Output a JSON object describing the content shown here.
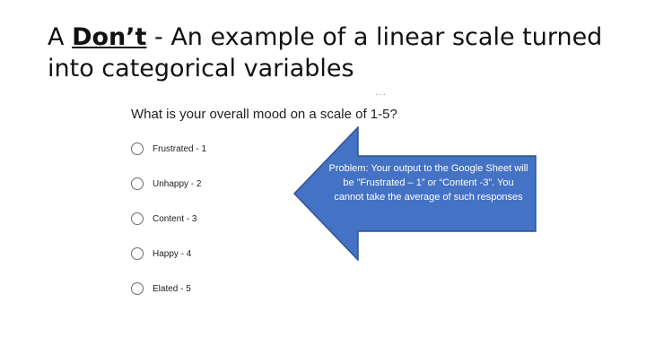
{
  "slide": {
    "title_prefix": "A ",
    "title_strong": "Don’t",
    "title_rest": " - An example of a linear scale turned into categorical variables"
  },
  "form": {
    "drag_handle": "...",
    "question": "What is your overall mood on a scale of 1-5?",
    "options": [
      {
        "label": "Frustrated - 1"
      },
      {
        "label": "Unhappy - 2"
      },
      {
        "label": "Content - 3"
      },
      {
        "label": "Happy - 4"
      },
      {
        "label": "Elated - 5"
      }
    ]
  },
  "callout": {
    "text": "Problem: Your output to the Google Sheet will be ”Frustrated – 1” or “Content -3”. You cannot take the average of such responses",
    "fill_color": "#4472c4",
    "stroke_color": "#2f528f"
  }
}
